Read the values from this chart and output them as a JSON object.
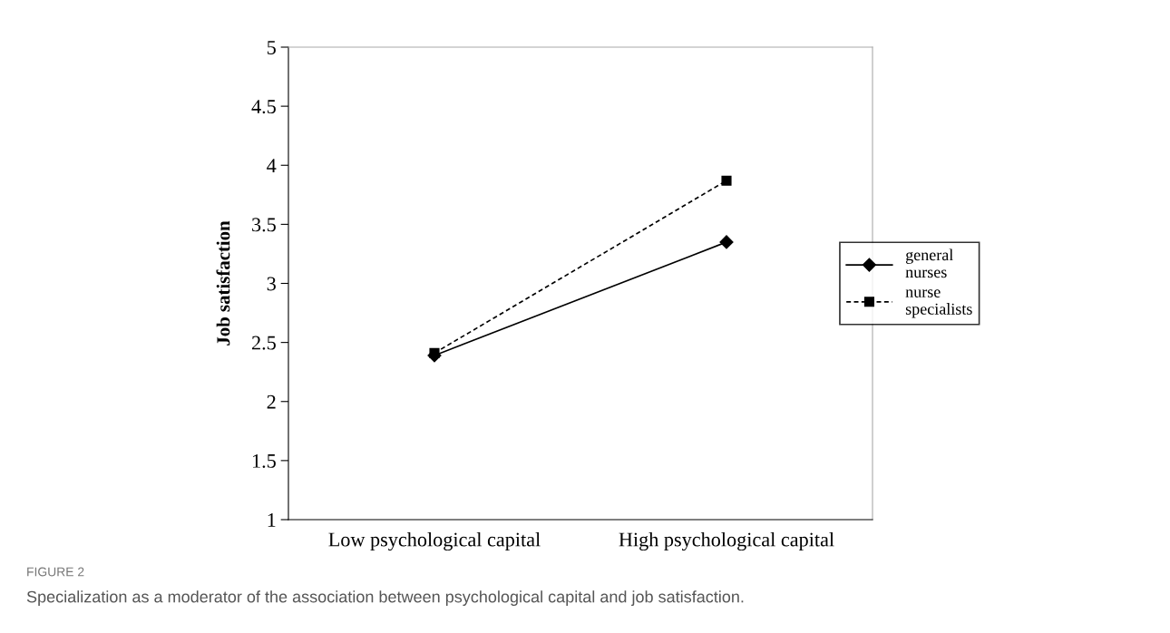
{
  "chart_data": {
    "type": "line",
    "ylabel": "Job satisfaction",
    "categories": [
      "Low psychological capital",
      "High psychological capital"
    ],
    "series": [
      {
        "name": "general nurses",
        "color": "#000000",
        "values": [
          2.39,
          3.35
        ],
        "marker": "diamond",
        "line_style": "solid"
      },
      {
        "name": "nurse specialists",
        "color": "#000000",
        "values": [
          2.41,
          3.87
        ],
        "marker": "square",
        "line_style": "dashed"
      }
    ],
    "ylim": [
      1,
      5
    ],
    "yticks": [
      1,
      1.5,
      2,
      2.5,
      3,
      3.5,
      4,
      4.5,
      5
    ],
    "grid": false,
    "legend": "right",
    "annotations": [
      "FIGURE 2",
      "Specialization as a moderator of the association between psychological capital and job satisfaction."
    ]
  }
}
